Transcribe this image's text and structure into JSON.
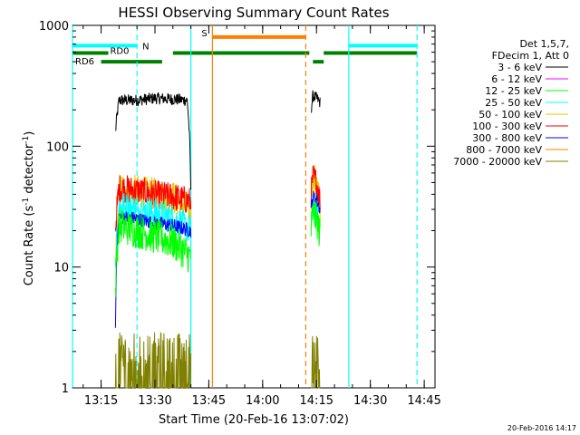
{
  "chart_data": {
    "type": "line",
    "title": "HESSI Observing Summary Count Rates",
    "xlabel": "Start Time (20-Feb-16 13:07:02)",
    "ylabel": "Count Rate (s",
    "ylabel_sup1": "-1",
    "ylabel_mid": " detector",
    "ylabel_sup2": "-1",
    "ylabel_end": ")",
    "y_scale": "log",
    "ylim": [
      1,
      1000
    ],
    "y_ticks": [
      {
        "value": 1,
        "label": "1"
      },
      {
        "value": 10,
        "label": "10"
      },
      {
        "value": 100,
        "label": "100"
      },
      {
        "value": 1000,
        "label": "1000"
      }
    ],
    "xlim": [
      "13:07:02",
      "14:48:00"
    ],
    "x_ticks": [
      {
        "value": "13:15",
        "label": "13:15"
      },
      {
        "value": "13:30",
        "label": "13:30"
      },
      {
        "value": "13:45",
        "label": "13:45"
      },
      {
        "value": "14:00",
        "label": "14:00"
      },
      {
        "value": "14:15",
        "label": "14:15"
      },
      {
        "value": "14:30",
        "label": "14:30"
      },
      {
        "value": "14:45",
        "label": "14:45"
      }
    ],
    "legend": {
      "placement": "right",
      "header": [
        "Det 1,5,7,",
        "FDecim 1, Att 0"
      ],
      "entries": [
        {
          "label": "3 - 6 keV",
          "color": "#000000"
        },
        {
          "label": "6 - 12 keV",
          "color": "#ff00ff"
        },
        {
          "label": "12 - 25 keV",
          "color": "#00ff00"
        },
        {
          "label": "25 - 50 keV",
          "color": "#00ffff"
        },
        {
          "label": "50 - 100 keV",
          "color": "#e6c800"
        },
        {
          "label": "100 - 300 keV",
          "color": "#ff0000"
        },
        {
          "label": "300 - 800 keV",
          "color": "#0000ff"
        },
        {
          "label": "800 - 7000 keV",
          "color": "#ff8000"
        },
        {
          "label": "7000 - 20000 keV",
          "color": "#808000"
        }
      ]
    },
    "observing_intervals": [
      {
        "name": "N",
        "label": "N",
        "color": "#00ffff",
        "segments": [
          [
            "13:07:02",
            "13:25:00"
          ],
          [
            "14:24:00",
            "14:43:00"
          ]
        ],
        "level": 680
      },
      {
        "name": "S",
        "label": "S",
        "color": "#ff8000",
        "segments": [
          [
            "13:46:00",
            "14:12:00"
          ]
        ],
        "level": 800
      },
      {
        "name": "RD0",
        "label": "RD0",
        "color": "#008000",
        "segments": [
          [
            "13:07:02",
            "13:17:00"
          ],
          [
            "13:35:00",
            "14:13:00"
          ],
          [
            "14:17:00",
            "14:43:00"
          ]
        ],
        "level": 590
      },
      {
        "name": "RD6",
        "label": "RD6",
        "color": "#008000",
        "segments": [
          [
            "13:15:00",
            "13:32:00"
          ],
          [
            "14:14:00",
            "14:17:00"
          ]
        ],
        "level": 500
      }
    ],
    "boundaries": [
      {
        "time": "13:07:02",
        "style": "solid",
        "color": "#00ffff"
      },
      {
        "time": "13:25:00",
        "style": "dashed",
        "color": "#00ffff"
      },
      {
        "time": "13:40:00",
        "style": "solid",
        "color": "#00ffff"
      },
      {
        "time": "13:46:00",
        "style": "solid",
        "color": "#ff8000"
      },
      {
        "time": "14:12:00",
        "style": "dashed",
        "color": "#ff8000"
      },
      {
        "time": "14:24:00",
        "style": "solid",
        "color": "#00ffff"
      },
      {
        "time": "14:43:00",
        "style": "dashed",
        "color": "#00ffff"
      }
    ],
    "series": [
      {
        "name": "3 - 6 keV",
        "color": "#000000",
        "noise": 0.05,
        "segments": [
          {
            "x": [
              "13:19:00",
              "13:20:00",
              "13:25:00",
              "13:30:00",
              "13:35:00",
              "13:39:00",
              "13:40:00"
            ],
            "y": [
              130,
              240,
              240,
              250,
              245,
              240,
              40
            ]
          },
          {
            "x": [
              "14:13:30",
              "14:14:00",
              "14:15:00",
              "14:16:00"
            ],
            "y": [
              200,
              260,
              250,
              230
            ]
          }
        ]
      },
      {
        "name": "50 - 100 keV",
        "color": "#e6c800",
        "noise": 0.14,
        "segments": [
          {
            "x": [
              "13:19:00",
              "13:20:00",
              "13:25:00",
              "13:30:00",
              "13:35:00",
              "13:40:00"
            ],
            "y": [
              10,
              45,
              42,
              40,
              38,
              28
            ]
          },
          {
            "x": [
              "14:13:30",
              "14:14:00",
              "14:15:00",
              "14:16:00"
            ],
            "y": [
              30,
              55,
              50,
              30
            ]
          }
        ]
      },
      {
        "name": "100 - 300 keV",
        "color": "#ff0000",
        "noise": 0.12,
        "segments": [
          {
            "x": [
              "13:19:00",
              "13:20:00",
              "13:25:00",
              "13:30:00",
              "13:35:00",
              "13:40:00"
            ],
            "y": [
              20,
              45,
              43,
              40,
              38,
              35
            ]
          },
          {
            "x": [
              "14:13:30",
              "14:14:00",
              "14:15:00",
              "14:16:00"
            ],
            "y": [
              40,
              55,
              50,
              35
            ]
          }
        ]
      },
      {
        "name": "25 - 50 keV",
        "color": "#00ffff",
        "noise": 0.13,
        "segments": [
          {
            "x": [
              "13:19:00",
              "13:20:00",
              "13:25:00",
              "13:30:00",
              "13:35:00",
              "13:40:00"
            ],
            "y": [
              10,
              32,
              30,
              28,
              25,
              20
            ]
          },
          {
            "x": [
              "14:13:30",
              "14:14:00",
              "14:15:00",
              "14:16:00"
            ],
            "y": [
              22,
              32,
              30,
              20
            ]
          }
        ]
      },
      {
        "name": "300 - 800 keV",
        "color": "#0000ff",
        "noise": 0.06,
        "segments": [
          {
            "x": [
              "13:19:00",
              "13:20:00",
              "13:25:00",
              "13:30:00",
              "13:35:00",
              "13:40:00"
            ],
            "y": [
              3.5,
              26,
              25,
              23,
              22,
              20
            ]
          },
          {
            "x": [
              "14:13:30",
              "14:14:00",
              "14:15:00",
              "14:16:00"
            ],
            "y": [
              30,
              38,
              36,
              30
            ]
          }
        ]
      },
      {
        "name": "12 - 25 keV",
        "color": "#00ff00",
        "noise": 0.15,
        "segments": [
          {
            "x": [
              "13:19:00",
              "13:20:00",
              "13:25:00",
              "13:30:00",
              "13:35:00",
              "13:40:00"
            ],
            "y": [
              6,
              22,
              20,
              18,
              16,
              12
            ]
          },
          {
            "x": [
              "14:13:30",
              "14:14:00",
              "14:15:00",
              "14:16:00"
            ],
            "y": [
              20,
              28,
              25,
              18
            ]
          }
        ]
      },
      {
        "name": "7000 - 20000 keV",
        "color": "#808000",
        "noise": 0.0,
        "spiky": true,
        "segments": [
          {
            "x": [
              "13:19:00",
              "13:25:00",
              "13:30:00",
              "13:35:00",
              "13:40:00"
            ],
            "y": [
              1.5,
              1.5,
              1.5,
              1.5,
              1.5
            ]
          },
          {
            "x": [
              "14:13:30",
              "14:15:00",
              "14:16:00"
            ],
            "y": [
              1.8,
              1.8,
              1.8
            ]
          }
        ]
      }
    ]
  },
  "footer": {
    "timestamp": "20-Feb-2016 14:17"
  }
}
